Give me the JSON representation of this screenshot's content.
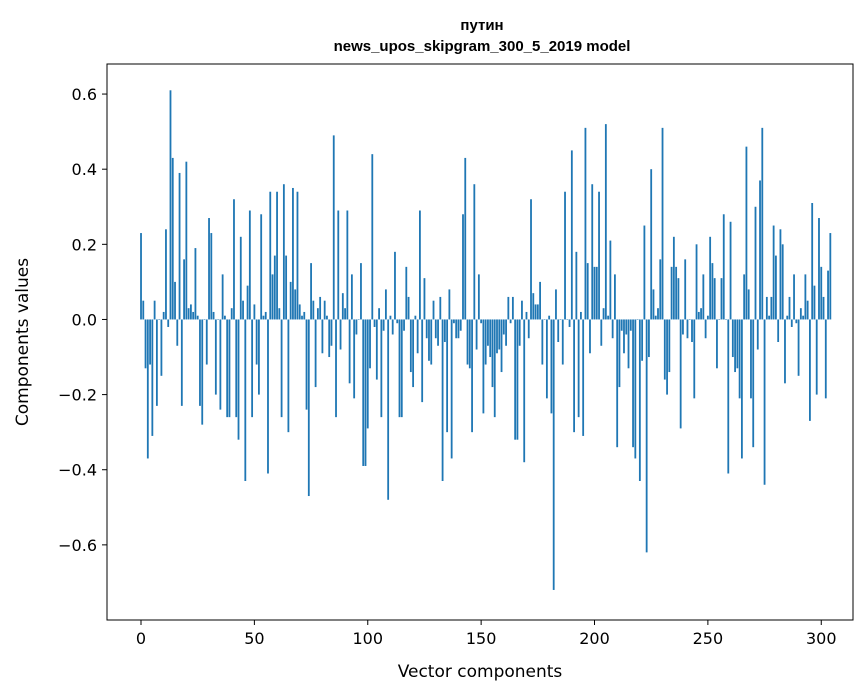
{
  "chart_data": {
    "type": "bar",
    "title": "путин",
    "subtitle": "news_upos_skipgram_300_5_2019 model",
    "xlabel": "Vector components",
    "ylabel": "Components values",
    "xlim": [
      -15,
      314
    ],
    "ylim": [
      -0.8,
      0.68
    ],
    "xticks": [
      0,
      50,
      100,
      150,
      200,
      250,
      300
    ],
    "yticks": [
      -0.6,
      -0.4,
      -0.2,
      0.0,
      0.2,
      0.4,
      0.6
    ],
    "xtick_labels": [
      "0",
      "50",
      "100",
      "150",
      "200",
      "250",
      "300"
    ],
    "ytick_labels": [
      "−0.6",
      "−0.4",
      "−0.2",
      "0.0",
      "0.2",
      "0.4",
      "0.6"
    ],
    "bar_color": "#1f77b4",
    "grid": false,
    "values": [
      0.23,
      0.05,
      -0.13,
      -0.37,
      -0.12,
      -0.31,
      0.05,
      -0.23,
      0.0,
      -0.15,
      0.02,
      0.24,
      -0.02,
      0.61,
      0.43,
      0.1,
      -0.07,
      0.39,
      -0.23,
      0.16,
      0.42,
      0.03,
      0.04,
      0.02,
      0.19,
      0.01,
      -0.23,
      -0.28,
      0.0,
      -0.12,
      0.27,
      0.23,
      0.02,
      -0.2,
      0.0,
      -0.24,
      0.12,
      0.01,
      -0.26,
      -0.26,
      0.03,
      0.32,
      -0.26,
      -0.32,
      0.22,
      0.05,
      -0.43,
      0.09,
      0.29,
      -0.26,
      0.04,
      -0.12,
      -0.2,
      0.28,
      0.01,
      0.02,
      -0.41,
      0.34,
      0.12,
      0.17,
      0.34,
      0.03,
      -0.26,
      0.36,
      0.17,
      -0.3,
      0.1,
      0.35,
      0.08,
      0.34,
      0.04,
      0.01,
      0.02,
      -0.24,
      -0.47,
      0.15,
      0.05,
      -0.18,
      0.03,
      0.06,
      -0.09,
      0.05,
      0.01,
      -0.1,
      -0.07,
      0.49,
      -0.26,
      0.29,
      -0.08,
      0.07,
      0.03,
      0.29,
      -0.17,
      0.12,
      -0.21,
      -0.04,
      0.0,
      0.15,
      -0.39,
      -0.39,
      -0.29,
      -0.13,
      0.44,
      -0.02,
      -0.16,
      0.03,
      -0.26,
      -0.03,
      0.08,
      -0.48,
      0.01,
      -0.04,
      0.18,
      -0.01,
      -0.26,
      -0.26,
      -0.03,
      0.14,
      0.06,
      -0.14,
      -0.18,
      0.01,
      -0.09,
      0.29,
      -0.22,
      0.11,
      -0.05,
      -0.11,
      -0.12,
      0.05,
      -0.05,
      -0.07,
      0.06,
      -0.43,
      -0.06,
      -0.3,
      0.08,
      -0.37,
      -0.01,
      -0.05,
      -0.05,
      -0.03,
      0.28,
      0.43,
      -0.12,
      -0.13,
      -0.3,
      0.36,
      -0.08,
      0.12,
      -0.01,
      -0.25,
      -0.12,
      -0.07,
      -0.1,
      -0.18,
      -0.26,
      -0.09,
      -0.08,
      -0.14,
      -0.04,
      -0.07,
      0.06,
      -0.01,
      0.06,
      -0.32,
      -0.32,
      -0.07,
      0.05,
      -0.38,
      0.02,
      -0.05,
      0.32,
      0.07,
      0.04,
      0.04,
      0.1,
      -0.12,
      0.0,
      -0.21,
      0.01,
      -0.25,
      -0.72,
      0.08,
      -0.06,
      0.0,
      -0.12,
      0.34,
      0.0,
      -0.02,
      0.45,
      -0.3,
      0.18,
      -0.26,
      0.02,
      -0.31,
      0.51,
      0.15,
      -0.09,
      0.36,
      0.14,
      0.14,
      0.34,
      -0.07,
      0.03,
      0.52,
      0.01,
      0.21,
      -0.05,
      0.12,
      -0.34,
      -0.18,
      -0.03,
      -0.09,
      -0.04,
      -0.13,
      -0.03,
      -0.34,
      -0.37,
      0.0,
      -0.43,
      -0.11,
      0.25,
      -0.62,
      -0.1,
      0.4,
      0.08,
      0.01,
      0.03,
      0.16,
      0.51,
      -0.16,
      -0.2,
      -0.14,
      0.14,
      0.22,
      0.14,
      0.11,
      -0.29,
      -0.04,
      0.16,
      -0.05,
      0.0,
      -0.06,
      -0.21,
      0.2,
      0.02,
      0.03,
      0.12,
      -0.05,
      0.01,
      0.22,
      0.15,
      0.11,
      -0.13,
      0.0,
      0.11,
      0.28,
      0.0,
      -0.41,
      0.26,
      -0.1,
      -0.14,
      -0.13,
      -0.21,
      -0.37,
      0.12,
      0.46,
      0.08,
      -0.21,
      -0.34,
      0.3,
      -0.08,
      0.37,
      0.51,
      -0.44,
      0.06,
      0.01,
      0.06,
      0.25,
      0.17,
      -0.06,
      0.24,
      0.2,
      -0.17,
      0.01,
      0.06,
      -0.02,
      0.12,
      -0.01,
      -0.15,
      0.03,
      0.01,
      0.12,
      0.05,
      -0.27,
      0.31,
      0.09,
      -0.2,
      0.27,
      0.14,
      0.06,
      -0.21,
      0.13,
      0.23
    ]
  }
}
